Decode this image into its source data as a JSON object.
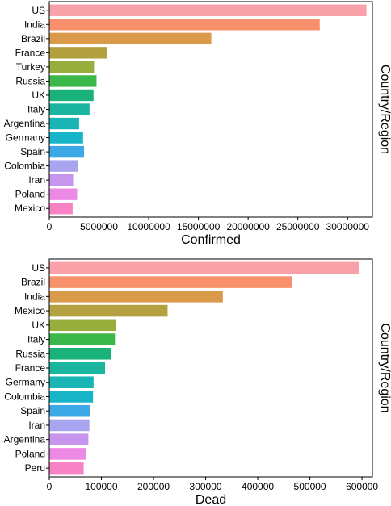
{
  "chart_data": [
    {
      "type": "bar",
      "orientation": "horizontal",
      "title": "",
      "xlabel": "Confirmed",
      "ylabel": "Country/Region",
      "xlim": [
        0,
        32500000
      ],
      "xticks": [
        0,
        5000000,
        10000000,
        15000000,
        20000000,
        25000000,
        30000000
      ],
      "xtick_labels": [
        "0",
        "5000000",
        "10000000",
        "15000000",
        "20000000",
        "25000000",
        "30000000"
      ],
      "grid": false,
      "legend": "none",
      "categories": [
        "US",
        "India",
        "Brazil",
        "France",
        "Turkey",
        "Russia",
        "UK",
        "Italy",
        "Argentina",
        "Germany",
        "Spain",
        "Colombia",
        "Iran",
        "Poland",
        "Mexico"
      ],
      "values": [
        31900000,
        27200000,
        16300000,
        5800000,
        4500000,
        4750000,
        4450000,
        4050000,
        3000000,
        3400000,
        3500000,
        2900000,
        2400000,
        2800000,
        2350000
      ],
      "colors": [
        "#f8a1a8",
        "#f8906b",
        "#d99a4a",
        "#b3a03e",
        "#98ae3c",
        "#3cb84a",
        "#18b27a",
        "#19b59f",
        "#19b4b4",
        "#18b4c8",
        "#3ca9e6",
        "#a9a4ef",
        "#c895ee",
        "#ec89e4",
        "#f783c5"
      ]
    },
    {
      "type": "bar",
      "orientation": "horizontal",
      "title": "",
      "xlabel": "Dead",
      "ylabel": "Country/Region",
      "xlim": [
        0,
        620000
      ],
      "xticks": [
        0,
        100000,
        200000,
        300000,
        400000,
        500000,
        600000
      ],
      "xtick_labels": [
        "0",
        "100000",
        "200000",
        "300000",
        "400000",
        "500000",
        "600000"
      ],
      "grid": false,
      "legend": "none",
      "categories": [
        "US",
        "Brazil",
        "India",
        "Mexico",
        "UK",
        "Italy",
        "Russia",
        "France",
        "Germany",
        "Colombia",
        "Spain",
        "Iran",
        "Argentina",
        "Poland",
        "Peru"
      ],
      "values": [
        595000,
        465000,
        333000,
        227000,
        128000,
        126000,
        118000,
        107000,
        85000,
        84000,
        78000,
        77000,
        75000,
        70000,
        66000
      ],
      "colors": [
        "#f8a1a8",
        "#f8906b",
        "#d99a4a",
        "#b3a03e",
        "#98ae3c",
        "#3cb84a",
        "#18b27a",
        "#19b59f",
        "#19b4b4",
        "#18b4c8",
        "#3ca9e6",
        "#a9a4ef",
        "#c895ee",
        "#ec89e4",
        "#f783c5"
      ]
    }
  ]
}
